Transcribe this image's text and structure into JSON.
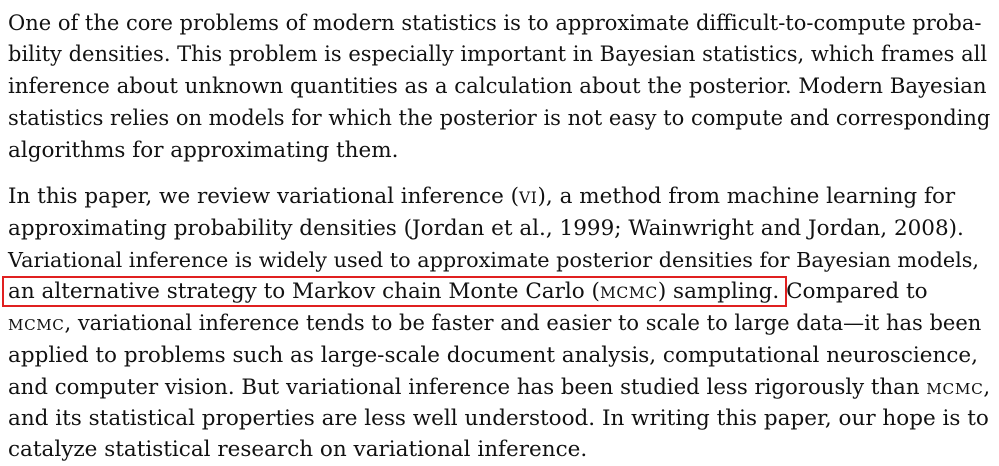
{
  "paragraph1": {
    "lines": [
      "One of the core problems of modern statistics is to approximate difficult-to-compute proba-",
      "bility densities. This problem is especially important in Bayesian statistics, which frames all",
      "inference about unknown quantities as a calculation about the posterior. Modern Bayesian",
      "statistics relies on models for which the posterior is not easy to compute and corresponding",
      "algorithms for approximating them."
    ]
  },
  "paragraph2": {
    "line1": {
      "before": "In this paper, we review variational inference (",
      "abbr": "VI",
      "after": "), a method from machine learning for"
    },
    "line2": "approximating probability densities (Jordan et al., 1999; Wainwright and Jordan, 2008).",
    "line3": "Variational inference is widely used to approximate posterior densities for Bayesian models,",
    "line4": {
      "highlighted_before": "an alternative strategy to Markov chain Monte Carlo (",
      "highlighted_abbr": "MCMC",
      "highlighted_after": ") sampling.",
      "rest": " Compared to"
    },
    "line5": {
      "abbr": "MCMC",
      "after": ", variational inference tends to be faster and easier to scale to large data—it has been"
    },
    "line6": "applied to problems such as large-scale document analysis, computational neuroscience,",
    "line7": {
      "before": "and computer vision. But variational inference has been studied less rigorously than ",
      "abbr": "MCMC",
      "after": ","
    },
    "line8": "and its statistical properties are less well understood. In writing this paper, our hope is to",
    "line9": "catalyze statistical research on variational inference."
  },
  "highlight_color": "#e02020"
}
